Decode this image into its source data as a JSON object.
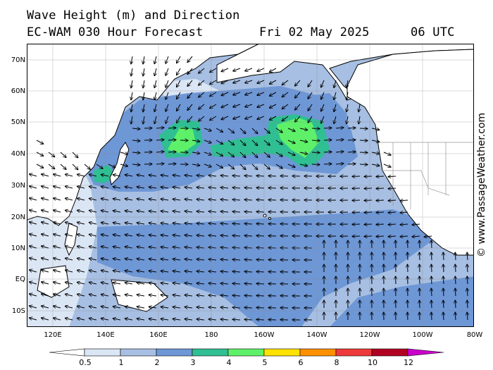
{
  "title": {
    "line1": "Wave Height (m) and Direction",
    "model": "EC-WAM 030 Hour Forecast",
    "date": "Fri 02 May 2025",
    "time": "06 UTC"
  },
  "watermark": "© www.PassageWeather.com",
  "latitude_labels": [
    "70N",
    "60N",
    "50N",
    "40N",
    "30N",
    "20N",
    "10N",
    "EQ",
    "10S"
  ],
  "longitude_labels": [
    "120E",
    "140E",
    "160E",
    "180",
    "160W",
    "140W",
    "120W",
    "100W",
    "80W"
  ],
  "colorbar": {
    "unit": "m",
    "labels": [
      "0.5",
      "1",
      "2",
      "3",
      "4",
      "5",
      "6",
      "8",
      "10",
      "12"
    ],
    "bins": [
      {
        "from": 0.5,
        "to": 1,
        "color": "#dbe6f5"
      },
      {
        "from": 1,
        "to": 2,
        "color": "#a7bfe2"
      },
      {
        "from": 2,
        "to": 3,
        "color": "#6e97d6"
      },
      {
        "from": 3,
        "to": 4,
        "color": "#2fbf93"
      },
      {
        "from": 4,
        "to": 5,
        "color": "#5ff06a"
      },
      {
        "from": 5,
        "to": 6,
        "color": "#ffe200"
      },
      {
        "from": 6,
        "to": 8,
        "color": "#ff9000"
      },
      {
        "from": 8,
        "to": 10,
        "color": "#ee3a3a"
      },
      {
        "from": 10,
        "to": 12,
        "color": "#b10021"
      },
      {
        "from": 12,
        "to": null,
        "color": "#cc00cc"
      }
    ]
  },
  "colors": {
    "land": "#ffffff",
    "coast": "#000000",
    "border": "#999999",
    "arrow": "#000000"
  }
}
